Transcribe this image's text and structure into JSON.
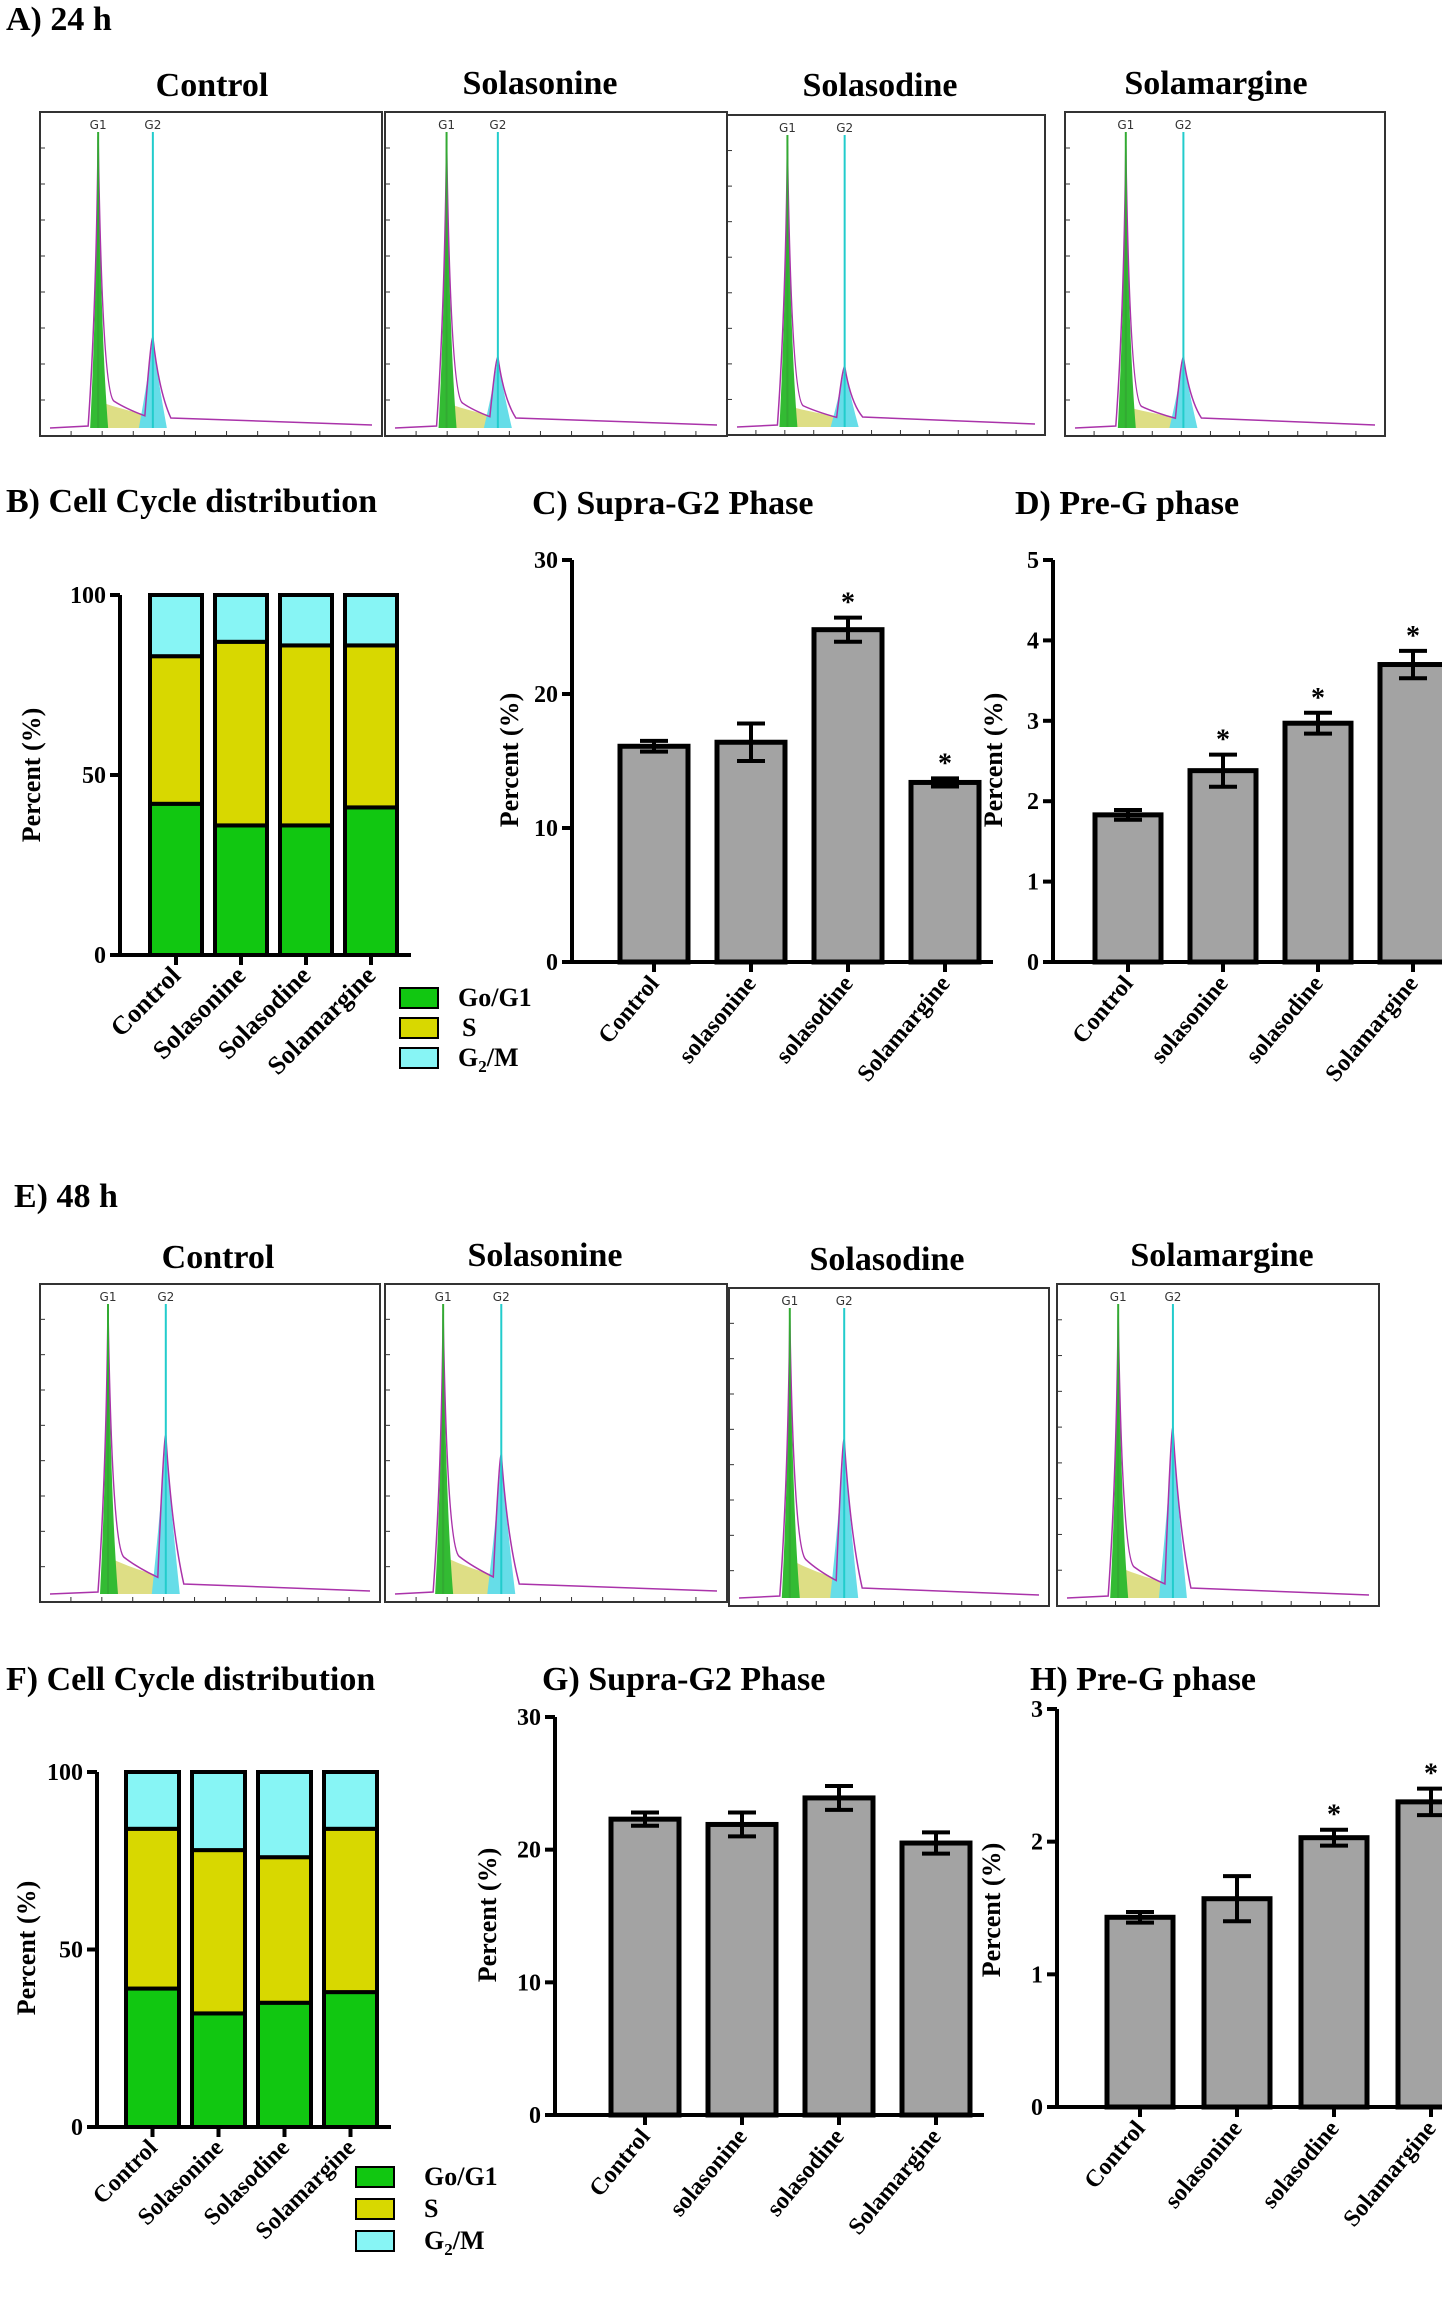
{
  "colors": {
    "g1": "#11c711",
    "s": "#d8d800",
    "g2m": "#87f5f5",
    "bar": "#a3a3a3",
    "hist_g1": "#33bb33",
    "hist_s": "#d8d870",
    "hist_g2": "#66dde8"
  },
  "panels": {
    "a_label": "A) 24 h",
    "b_label": "B) Cell Cycle distribution",
    "c_label": "C) Supra-G2 Phase",
    "d_label": "D) Pre-G phase",
    "e_label": "E) 48 h",
    "f_label": "F) Cell Cycle distribution",
    "g_label": "G) Supra-G2 Phase",
    "h_label": "H) Pre-G phase"
  },
  "histogram_titles": [
    "Control",
    "Solasonine",
    "Solasodine",
    "Solamargine"
  ],
  "gate_labels": {
    "g1": "G1",
    "g2": "G2"
  },
  "legend": {
    "items": [
      {
        "label": "Go/G1",
        "key": "g1"
      },
      {
        "label": "S",
        "key": "s"
      },
      {
        "label_main": "G",
        "label_sub": "2",
        "label_tail": "/M",
        "key": "g2m"
      }
    ]
  },
  "chart_data": [
    {
      "id": "B",
      "type": "bar",
      "stacked": true,
      "title": "Cell Cycle distribution",
      "ylabel": "Percent (%)",
      "ylim": [
        0,
        100
      ],
      "yticks": [
        0,
        50,
        100
      ],
      "categories": [
        "Control",
        "Solasonine",
        "Solasodine",
        "Solamargine"
      ],
      "series": [
        {
          "name": "Go/G1",
          "values": [
            42,
            36,
            36,
            41
          ]
        },
        {
          "name": "S",
          "values": [
            41,
            51,
            50,
            45
          ]
        },
        {
          "name": "G2/M",
          "values": [
            17,
            13,
            14,
            14
          ]
        }
      ]
    },
    {
      "id": "C",
      "type": "bar",
      "title": "Supra-G2 Phase",
      "ylabel": "Percent (%)",
      "ylim": [
        0,
        30
      ],
      "yticks": [
        0,
        10,
        20,
        30
      ],
      "categories": [
        "Control",
        "solasonine",
        "solasodine",
        "Solamargine"
      ],
      "values": [
        16.1,
        16.4,
        24.8,
        13.4
      ],
      "errors": [
        0.4,
        1.4,
        0.9,
        0.3
      ],
      "significance": [
        "",
        "",
        "*",
        "*"
      ]
    },
    {
      "id": "D",
      "type": "bar",
      "title": "Pre-G phase",
      "ylabel": "Percent (%)",
      "ylim": [
        0,
        5
      ],
      "yticks": [
        0,
        1,
        2,
        3,
        4,
        5
      ],
      "categories": [
        "Control",
        "solasonine",
        "solasodine",
        "Solamargine"
      ],
      "values": [
        1.83,
        2.38,
        2.97,
        3.7
      ],
      "errors": [
        0.06,
        0.2,
        0.13,
        0.17
      ],
      "significance": [
        "",
        "*",
        "*",
        "*"
      ]
    },
    {
      "id": "F",
      "type": "bar",
      "stacked": true,
      "title": "Cell Cycle distribution",
      "ylabel": "Percent (%)",
      "ylim": [
        0,
        100
      ],
      "yticks": [
        0,
        50,
        100
      ],
      "categories": [
        "Control",
        "Solasonine",
        "Solasodine",
        "Solamargine"
      ],
      "series": [
        {
          "name": "Go/G1",
          "values": [
            39,
            32,
            35,
            38
          ]
        },
        {
          "name": "S",
          "values": [
            45,
            46,
            41,
            46
          ]
        },
        {
          "name": "G2/M",
          "values": [
            16,
            22,
            24,
            16
          ]
        }
      ]
    },
    {
      "id": "G",
      "type": "bar",
      "title": "Supra-G2 Phase",
      "ylabel": "Percent (%)",
      "ylim": [
        0,
        30
      ],
      "yticks": [
        0,
        10,
        20,
        30
      ],
      "categories": [
        "Control",
        "solasonine",
        "solasodine",
        "Solamargine"
      ],
      "values": [
        22.3,
        21.9,
        23.9,
        20.5
      ],
      "errors": [
        0.5,
        0.9,
        0.9,
        0.8
      ],
      "significance": [
        "",
        "",
        "",
        ""
      ]
    },
    {
      "id": "H",
      "type": "bar",
      "title": "Pre-G phase",
      "ylabel": "Percent (%)",
      "ylim": [
        0,
        3
      ],
      "yticks": [
        0,
        1,
        2,
        3
      ],
      "categories": [
        "Control",
        "solasonine",
        "solasodine",
        "Solamargine"
      ],
      "values": [
        1.43,
        1.57,
        2.03,
        2.3
      ],
      "errors": [
        0.04,
        0.17,
        0.06,
        0.1
      ],
      "significance": [
        "",
        "",
        "*",
        "*"
      ]
    }
  ]
}
